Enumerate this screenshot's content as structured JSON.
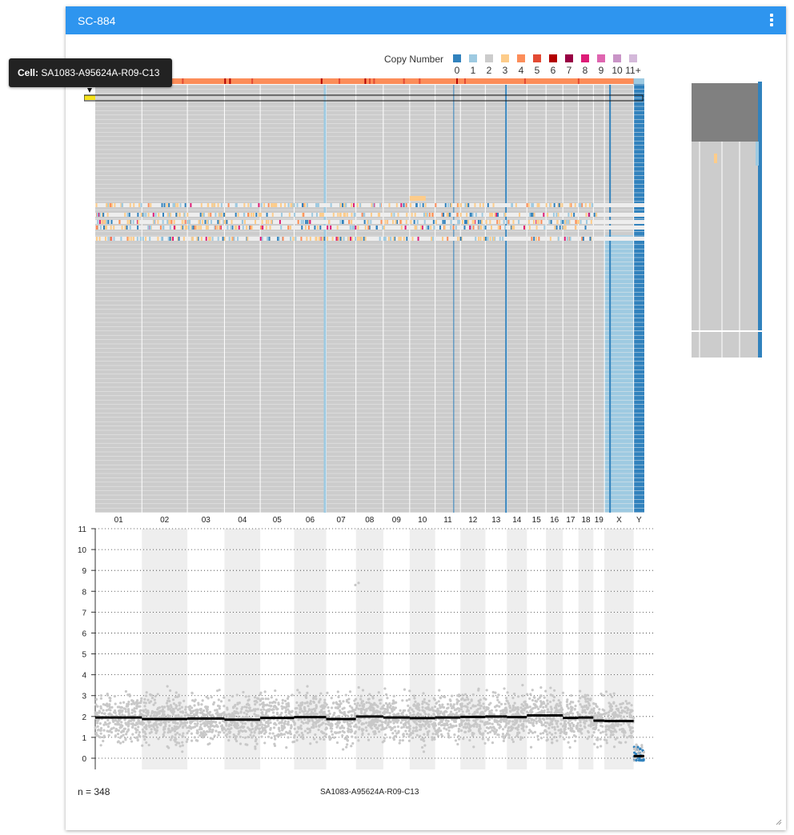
{
  "panel": {
    "title": "SC-884",
    "menu_icon": "more-vert-icon"
  },
  "tooltip": {
    "label": "Cell:",
    "value": "SA1083-A95624A-R09-C13"
  },
  "legend": {
    "title": "Copy Number",
    "items": [
      {
        "label": "0",
        "color": "#3182bd"
      },
      {
        "label": "1",
        "color": "#9ecae1"
      },
      {
        "label": "2",
        "color": "#cccccc"
      },
      {
        "label": "3",
        "color": "#fdcc8a"
      },
      {
        "label": "4",
        "color": "#fc8d59"
      },
      {
        "label": "5",
        "color": "#e34a33"
      },
      {
        "label": "6",
        "color": "#b30000"
      },
      {
        "label": "7",
        "color": "#980043"
      },
      {
        "label": "8",
        "color": "#dd1c77"
      },
      {
        "label": "9",
        "color": "#df65b0"
      },
      {
        "label": "10",
        "color": "#c994c7"
      },
      {
        "label": "11+",
        "color": "#d4b9da"
      }
    ]
  },
  "chart_data": [
    {
      "type": "heatmap",
      "title": "",
      "xlabel": "",
      "ylabel": "",
      "chromosomes": [
        "01",
        "02",
        "03",
        "04",
        "05",
        "06",
        "07",
        "08",
        "09",
        "10",
        "11",
        "12",
        "13",
        "14",
        "15",
        "16",
        "17",
        "18",
        "19",
        "X",
        "Y"
      ],
      "chromosome_lengths_mb": [
        249,
        243,
        198,
        191,
        181,
        171,
        159,
        146,
        141,
        136,
        135,
        133,
        115,
        107,
        102,
        90,
        83,
        80,
        59,
        156,
        57
      ],
      "cell_count": 348,
      "dominant_copy_number": 2,
      "selected_cell": "SA1083-A95624A-R09-C13",
      "consensus_top_bar": "4"
    },
    {
      "type": "scatter",
      "title": "",
      "xlabel": "",
      "ylabel": "",
      "cell": "SA1083-A95624A-R09-C13",
      "ylim": [
        0,
        11
      ],
      "yticks": [
        0,
        1,
        2,
        3,
        4,
        5,
        6,
        7,
        8,
        9,
        10,
        11
      ],
      "grid": "horizontal-dotted",
      "segments": [
        {
          "chr": "01",
          "value": 1.95
        },
        {
          "chr": "02",
          "value": 1.88
        },
        {
          "chr": "03",
          "value": 1.9
        },
        {
          "chr": "04",
          "value": 1.85
        },
        {
          "chr": "05",
          "value": 1.93
        },
        {
          "chr": "06",
          "value": 1.97
        },
        {
          "chr": "07",
          "value": 1.88
        },
        {
          "chr": "08",
          "value": 2.0
        },
        {
          "chr": "09",
          "value": 1.95
        },
        {
          "chr": "10",
          "value": 1.92
        },
        {
          "chr": "11",
          "value": 1.95
        },
        {
          "chr": "12",
          "value": 1.98
        },
        {
          "chr": "13",
          "value": 2.0
        },
        {
          "chr": "14",
          "value": 1.97
        },
        {
          "chr": "15",
          "value": 2.05
        },
        {
          "chr": "16",
          "value": 2.05
        },
        {
          "chr": "17",
          "value": 1.93
        },
        {
          "chr": "18",
          "value": 1.95
        },
        {
          "chr": "19",
          "value": 1.8
        },
        {
          "chr": "X",
          "value": 1.78
        },
        {
          "chr": "Y",
          "value": 0.1
        }
      ],
      "footer_count_text": "n = 348",
      "footer_cell_text": "SA1083-A95624A-R09-C13"
    }
  ]
}
